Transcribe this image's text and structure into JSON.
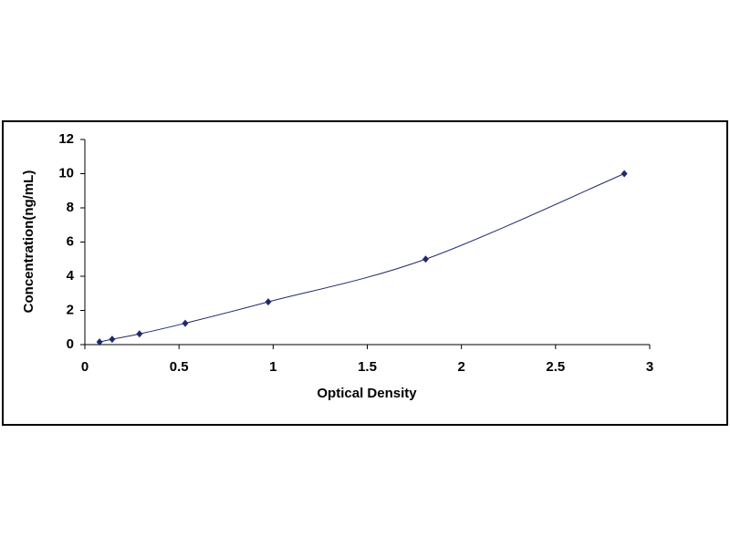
{
  "chart_data": {
    "type": "scatter",
    "x_label": "Optical Density",
    "y_label": "Concentration(ng/mL)",
    "series": [
      {
        "color": "#1f2a6b",
        "x": [
          0.078,
          0.145,
          0.29,
          0.533,
          0.974,
          1.81,
          2.865
        ],
        "values": [
          0.156,
          0.312,
          0.625,
          1.25,
          2.5,
          5,
          10
        ]
      }
    ],
    "smooth_line": true,
    "xlim": [
      0,
      3
    ],
    "xticks": [
      0,
      0.5,
      1,
      1.5,
      2,
      2.5,
      3
    ],
    "ylim": [
      0,
      12
    ],
    "yticks": [
      0,
      2,
      4,
      6,
      8,
      10,
      12
    ]
  }
}
